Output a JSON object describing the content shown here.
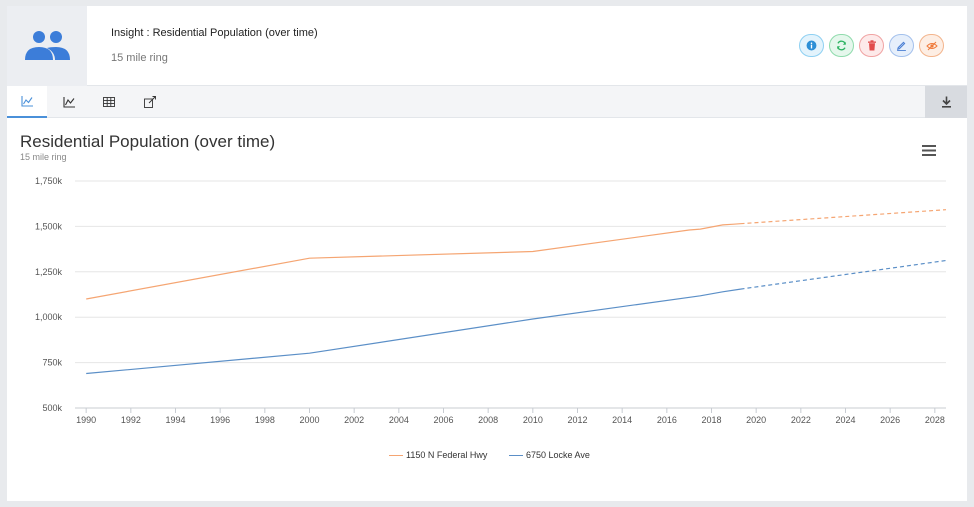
{
  "header": {
    "title": "Insight : Residential Population (over time)",
    "subtitle": "15 mile ring",
    "avatar_icon": "users-icon",
    "actions": [
      {
        "name": "info",
        "icon": "info-icon",
        "color": "#2d8fd6"
      },
      {
        "name": "refresh",
        "icon": "refresh-icon",
        "color": "#2fb463"
      },
      {
        "name": "delete",
        "icon": "trash-icon",
        "color": "#e24b4b"
      },
      {
        "name": "edit",
        "icon": "pencil-icon",
        "color": "#4a7fd4"
      },
      {
        "name": "hide",
        "icon": "eye-slash-icon",
        "color": "#ef7a3a"
      }
    ]
  },
  "tabs": [
    {
      "name": "line-chart",
      "icon": "line-chart-icon",
      "active": true
    },
    {
      "name": "area-chart",
      "icon": "area-chart-icon",
      "active": false
    },
    {
      "name": "table",
      "icon": "table-icon",
      "active": false
    },
    {
      "name": "export",
      "icon": "export-icon",
      "active": false
    }
  ],
  "download_icon": "download-icon",
  "chart_data": {
    "type": "line",
    "title": "Residential Population (over time)",
    "subtitle": "15 mile ring",
    "xlabel": "",
    "ylabel": "",
    "xlim": [
      1989.5,
      2028.5
    ],
    "ylim": [
      500000,
      1750000
    ],
    "x_ticks": [
      1990,
      1992,
      1994,
      1996,
      1998,
      2000,
      2002,
      2004,
      2006,
      2008,
      2010,
      2012,
      2014,
      2016,
      2018,
      2020,
      2022,
      2024,
      2026,
      2028
    ],
    "y_ticks": [
      {
        "value": 500000,
        "label": "500k"
      },
      {
        "value": 750000,
        "label": "750k"
      },
      {
        "value": 1000000,
        "label": "1,000k"
      },
      {
        "value": 1250000,
        "label": "1,250k"
      },
      {
        "value": 1500000,
        "label": "1,500k"
      },
      {
        "value": 1750000,
        "label": "1,750k"
      }
    ],
    "grid": "horizontal",
    "legend_position": "bottom-center",
    "series": [
      {
        "name": "1150 N Federal Hwy",
        "color": "#f5a572",
        "actual": [
          [
            1990,
            1100000
          ],
          [
            2000,
            1325000
          ],
          [
            2010,
            1362000
          ],
          [
            2017,
            1480000
          ],
          [
            2017.5,
            1485000
          ],
          [
            2018.5,
            1508000
          ],
          [
            2019,
            1512000
          ],
          [
            2019.3,
            1515000
          ]
        ],
        "projected": [
          [
            2019.3,
            1515000
          ],
          [
            2028.5,
            1592000
          ]
        ]
      },
      {
        "name": "6750 Locke Ave",
        "color": "#5b8fc7",
        "actual": [
          [
            1990,
            690000
          ],
          [
            2000,
            802000
          ],
          [
            2010,
            990000
          ],
          [
            2017.5,
            1118000
          ],
          [
            2018.5,
            1140000
          ],
          [
            2019.3,
            1155000
          ]
        ],
        "projected": [
          [
            2019.3,
            1155000
          ],
          [
            2028.5,
            1312000
          ]
        ]
      }
    ]
  }
}
